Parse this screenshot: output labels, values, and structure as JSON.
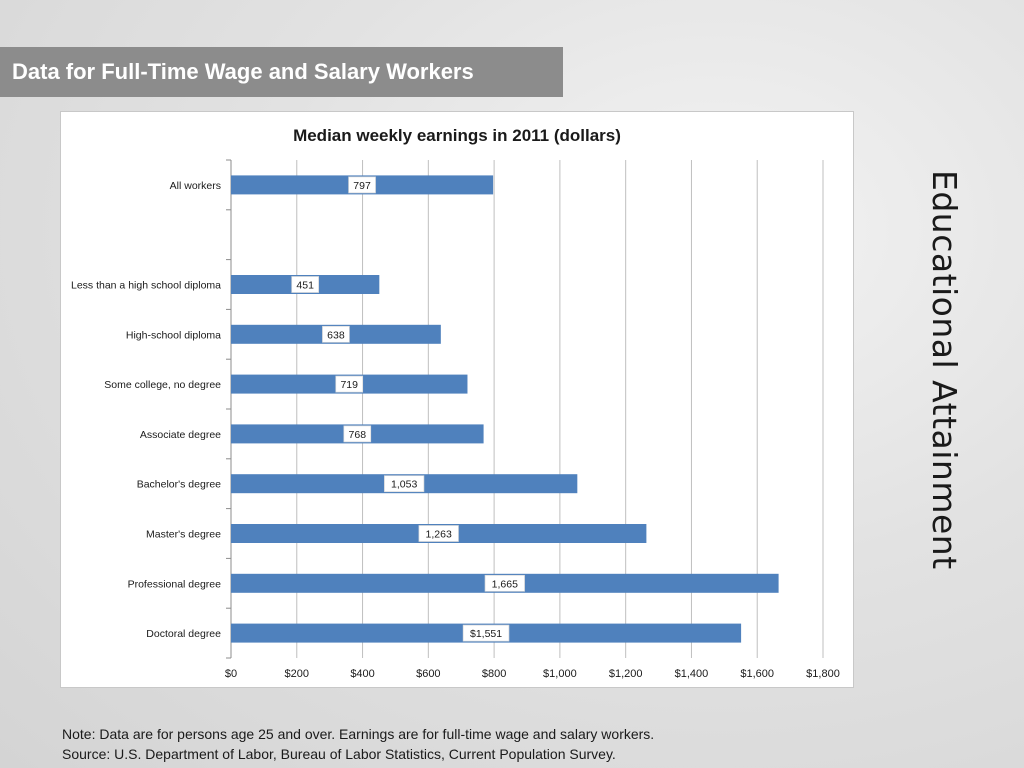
{
  "slide": {
    "title": "Data for Full-Time Wage and Salary Workers",
    "side_title": "Educational Attainment",
    "note": "Note: Data are for persons age 25 and over. Earnings are for full-time wage and salary workers.",
    "source": "Source: U.S. Department of Labor, Bureau of Labor Statistics, Current Population Survey."
  },
  "chart_data": {
    "type": "bar",
    "orientation": "horizontal",
    "title": "Median weekly earnings in 2011 (dollars)",
    "xlabel": "",
    "ylabel": "",
    "xlim": [
      0,
      1800
    ],
    "grid": true,
    "bar_color": "#4f81bd",
    "ticks": [
      {
        "value": 0,
        "label": "$0"
      },
      {
        "value": 200,
        "label": "$200"
      },
      {
        "value": 400,
        "label": "$400"
      },
      {
        "value": 600,
        "label": "$600"
      },
      {
        "value": 800,
        "label": "$800"
      },
      {
        "value": 1000,
        "label": "$1,000"
      },
      {
        "value": 1200,
        "label": "$1,200"
      },
      {
        "value": 1400,
        "label": "$1,400"
      },
      {
        "value": 1600,
        "label": "$1,600"
      },
      {
        "value": 1800,
        "label": "$1,800"
      }
    ],
    "categories": [
      "All workers",
      "",
      "Less than a high school diploma",
      "High-school diploma",
      "Some college, no degree",
      "Associate degree",
      "Bachelor's degree",
      "Master's degree",
      "Professional degree",
      "Doctoral degree"
    ],
    "values": [
      797,
      null,
      451,
      638,
      719,
      768,
      1053,
      1263,
      1665,
      1551
    ],
    "data_labels": [
      "797",
      "",
      "451",
      "638",
      "719",
      "768",
      "1,053",
      "1,263",
      "1,665",
      "$1,551"
    ]
  }
}
